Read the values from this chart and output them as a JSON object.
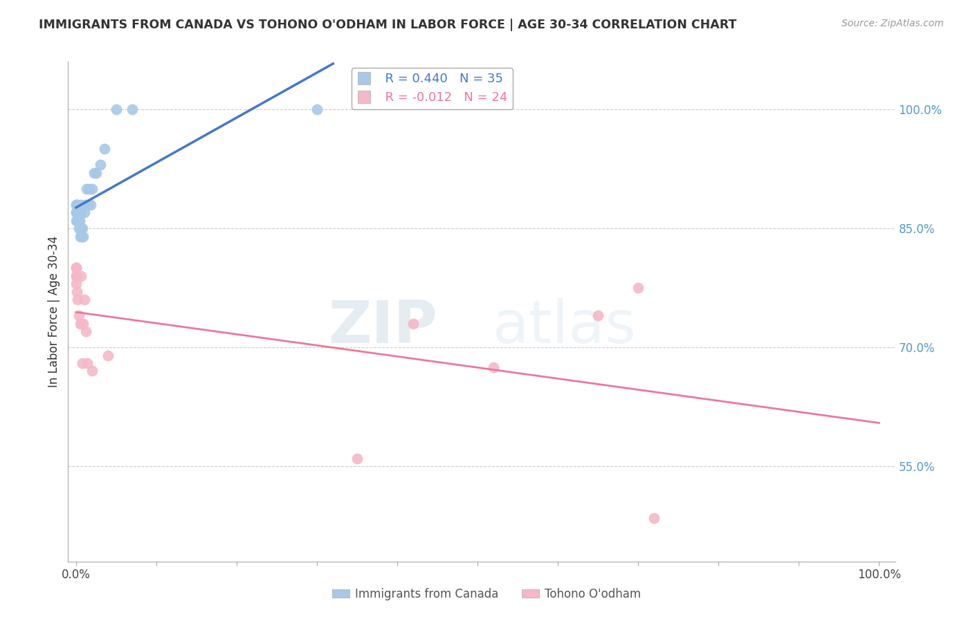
{
  "title": "IMMIGRANTS FROM CANADA VS TOHONO O'ODHAM IN LABOR FORCE | AGE 30-34 CORRELATION CHART",
  "source": "Source: ZipAtlas.com",
  "ylabel": "In Labor Force | Age 30-34",
  "legend_label1": "Immigrants from Canada",
  "legend_label2": "Tohono O'odham",
  "R1": 0.44,
  "N1": 35,
  "R2": -0.012,
  "N2": 24,
  "blue_color": "#a8c8e8",
  "pink_color": "#f4b8c8",
  "trend_blue": "#4477cc",
  "trend_pink": "#ee7799",
  "right_yticks": [
    55.0,
    70.0,
    85.0,
    100.0
  ],
  "xmin": 0.0,
  "xmax": 1.0,
  "ymin": 0.43,
  "ymax": 1.06,
  "blue_x": [
    0.0,
    0.0,
    0.0,
    0.0,
    0.0,
    0.001,
    0.001,
    0.001,
    0.002,
    0.002,
    0.003,
    0.003,
    0.004,
    0.005,
    0.005,
    0.006,
    0.006,
    0.007,
    0.008,
    0.009,
    0.01,
    0.011,
    0.012,
    0.013,
    0.015,
    0.016,
    0.018,
    0.02,
    0.022,
    0.025,
    0.03,
    0.035,
    0.05,
    0.07,
    0.3
  ],
  "blue_y": [
    0.87,
    0.88,
    0.88,
    0.87,
    0.86,
    0.87,
    0.88,
    0.86,
    0.87,
    0.88,
    0.85,
    0.86,
    0.86,
    0.84,
    0.85,
    0.88,
    0.87,
    0.84,
    0.85,
    0.84,
    0.87,
    0.88,
    0.88,
    0.9,
    0.88,
    0.9,
    0.88,
    0.9,
    0.92,
    0.92,
    0.93,
    0.95,
    1.0,
    1.0,
    1.0
  ],
  "pink_x": [
    0.0,
    0.0,
    0.0,
    0.0,
    0.0,
    0.001,
    0.002,
    0.003,
    0.005,
    0.006,
    0.007,
    0.008,
    0.009,
    0.01,
    0.012,
    0.014,
    0.02,
    0.04,
    0.35,
    0.42,
    0.52,
    0.65,
    0.7,
    0.72
  ],
  "pink_y": [
    0.8,
    0.79,
    0.78,
    0.8,
    0.79,
    0.77,
    0.76,
    0.74,
    0.73,
    0.79,
    0.73,
    0.68,
    0.73,
    0.76,
    0.72,
    0.68,
    0.67,
    0.69,
    0.56,
    0.73,
    0.675,
    0.74,
    0.775,
    0.485
  ],
  "num_xticks": 11
}
